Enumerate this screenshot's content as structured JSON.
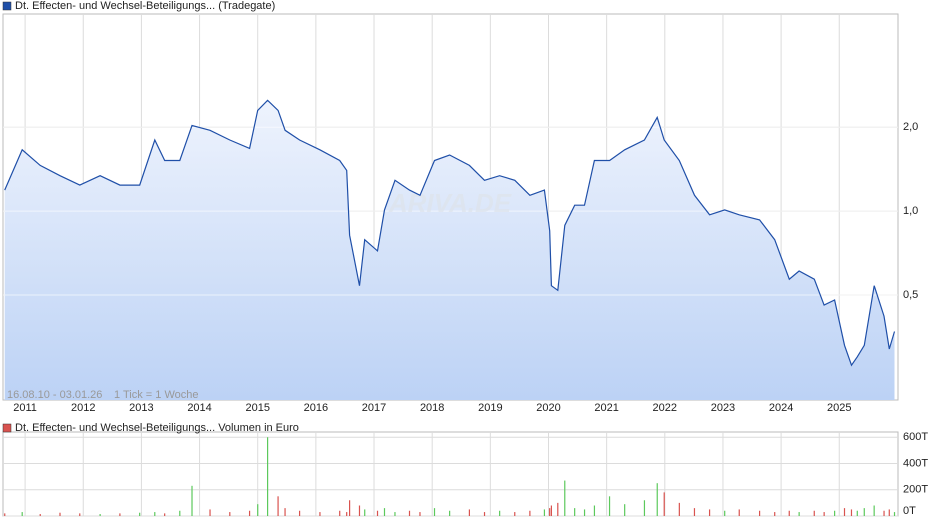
{
  "chart_data": [
    {
      "type": "line",
      "series": [
        {
          "name": "Dt. Effecten- und Wechsel-Beteiligungs... (Tradegate)",
          "color": "#1f4fa8",
          "values": [
            1.19,
            1.66,
            1.46,
            1.34,
            1.24,
            1.34,
            1.24,
            1.24,
            1.8,
            1.52,
            1.52,
            2.03,
            1.95,
            1.8,
            1.68,
            2.3,
            2.5,
            2.3,
            1.95,
            1.8,
            1.66,
            1.52,
            1.4,
            0.82,
            0.54,
            0.79,
            0.72,
            1.01,
            1.29,
            1.19,
            1.14,
            1.52,
            1.59,
            1.46,
            1.29,
            1.34,
            1.29,
            1.14,
            1.19,
            0.85,
            0.54,
            0.52,
            0.89,
            1.05,
            1.05,
            1.52,
            1.52,
            1.66,
            1.8,
            2.17,
            1.8,
            1.52,
            1.14,
            0.97,
            1.01,
            0.97,
            0.93,
            0.79,
            0.57,
            0.61,
            0.57,
            0.46,
            0.48,
            0.33,
            0.28,
            0.3,
            0.33,
            0.54,
            0.42,
            0.32,
            0.37
          ]
        }
      ],
      "x": [
        2010.65,
        2010.95,
        2011.26,
        2011.6,
        2011.94,
        2012.29,
        2012.63,
        2012.97,
        2013.23,
        2013.4,
        2013.66,
        2013.87,
        2014.18,
        2014.52,
        2014.86,
        2015.0,
        2015.17,
        2015.35,
        2015.47,
        2015.72,
        2016.07,
        2016.41,
        2016.53,
        2016.58,
        2016.75,
        2016.84,
        2017.06,
        2017.18,
        2017.36,
        2017.61,
        2017.79,
        2018.04,
        2018.3,
        2018.64,
        2018.9,
        2019.16,
        2019.42,
        2019.68,
        2019.93,
        2020.02,
        2020.05,
        2020.16,
        2020.28,
        2020.45,
        2020.62,
        2020.79,
        2021.05,
        2021.31,
        2021.65,
        2021.87,
        2021.99,
        2022.25,
        2022.51,
        2022.77,
        2023.03,
        2023.28,
        2023.63,
        2023.89,
        2024.14,
        2024.31,
        2024.57,
        2024.74,
        2024.92,
        2025.09,
        2025.21,
        2025.31,
        2025.43,
        2025.6,
        2025.77,
        2025.86,
        2025.95
      ],
      "xlim": [
        2010.62,
        2026.01
      ],
      "xticks": [
        2011,
        2012,
        2013,
        2014,
        2015,
        2016,
        2017,
        2018,
        2019,
        2020,
        2021,
        2022,
        2023,
        2024,
        2025
      ],
      "ylim": [
        0.21,
        5.1
      ],
      "log_scale": true,
      "yticks": [
        {
          "value": 0.5,
          "label": "0,5"
        },
        {
          "value": 1.0,
          "label": "1,0"
        },
        {
          "value": 2.0,
          "label": "2,0"
        }
      ],
      "grid": true,
      "range_label": "16.08.10 - 03.01.26",
      "tick_label": "1 Tick = 1 Woche",
      "watermark": "ARIVA.DE"
    },
    {
      "type": "bar",
      "series": [
        {
          "name": "Dt. Effecten- und Wechsel-Beteiligungs... Volumen in Euro",
          "color": "#d9534f",
          "up_color": "#5cc95c",
          "values": [
            20000,
            30000,
            15000,
            25000,
            20000,
            15000,
            20000,
            25000,
            30000,
            20000,
            40000,
            230000,
            50000,
            30000,
            40000,
            90000,
            600000,
            150000,
            60000,
            40000,
            30000,
            40000,
            30000,
            120000,
            80000,
            50000,
            40000,
            60000,
            30000,
            40000,
            30000,
            60000,
            40000,
            50000,
            30000,
            40000,
            30000,
            40000,
            50000,
            60000,
            80000,
            100000,
            270000,
            60000,
            50000,
            80000,
            150000,
            90000,
            120000,
            250000,
            180000,
            100000,
            60000,
            50000,
            40000,
            50000,
            40000,
            30000,
            40000,
            30000,
            40000,
            30000,
            40000,
            60000,
            50000,
            40000,
            60000,
            80000,
            40000,
            50000,
            30000
          ]
        }
      ],
      "x": [
        2010.65,
        2010.95,
        2011.26,
        2011.6,
        2011.94,
        2012.29,
        2012.63,
        2012.97,
        2013.23,
        2013.4,
        2013.66,
        2013.87,
        2014.18,
        2014.52,
        2014.86,
        2015.0,
        2015.17,
        2015.35,
        2015.47,
        2015.72,
        2016.07,
        2016.41,
        2016.53,
        2016.58,
        2016.75,
        2016.84,
        2017.06,
        2017.18,
        2017.36,
        2017.61,
        2017.79,
        2018.04,
        2018.3,
        2018.64,
        2018.9,
        2019.16,
        2019.42,
        2019.68,
        2019.93,
        2020.02,
        2020.05,
        2020.16,
        2020.28,
        2020.45,
        2020.62,
        2020.79,
        2021.05,
        2021.31,
        2021.65,
        2021.87,
        2021.99,
        2022.25,
        2022.51,
        2022.77,
        2023.03,
        2023.28,
        2023.63,
        2023.89,
        2024.14,
        2024.31,
        2024.57,
        2024.74,
        2024.92,
        2025.09,
        2025.21,
        2025.31,
        2025.43,
        2025.6,
        2025.77,
        2025.86,
        2025.95
      ],
      "xlim": [
        2010.62,
        2026.01
      ],
      "xticks": [
        2011,
        2012,
        2013,
        2014,
        2015,
        2016,
        2017,
        2018,
        2019,
        2020,
        2021,
        2022,
        2023,
        2024,
        2025
      ],
      "ylim": [
        0,
        640000
      ],
      "yticks": [
        {
          "value": 0,
          "label": "0T"
        },
        {
          "value": 200000,
          "label": "200T"
        },
        {
          "value": 400000,
          "label": "400T"
        },
        {
          "value": 600000,
          "label": "600T"
        }
      ],
      "grid": true
    }
  ]
}
